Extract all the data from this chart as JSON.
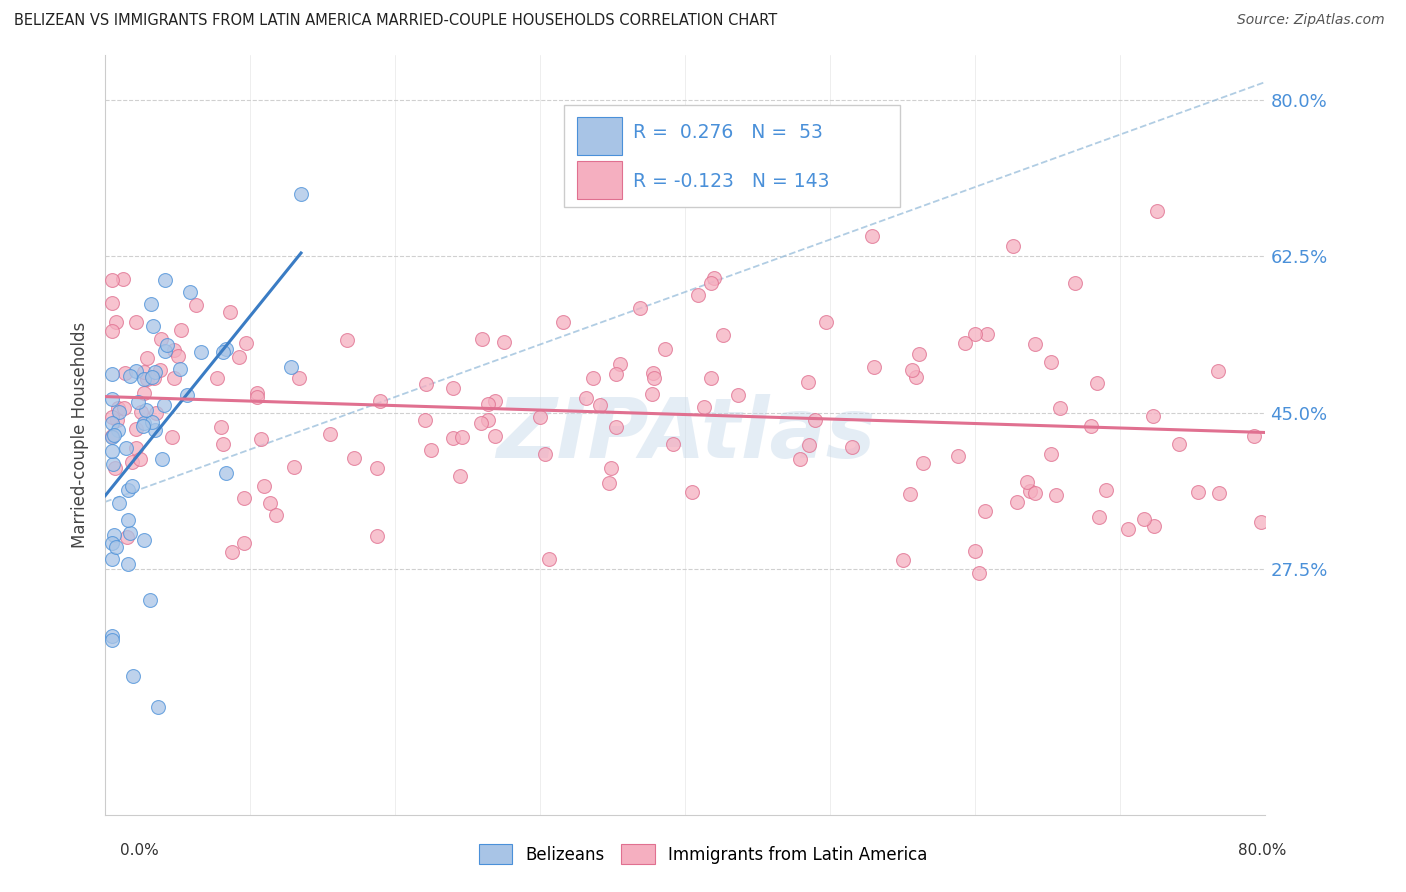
{
  "title": "BELIZEAN VS IMMIGRANTS FROM LATIN AMERICA MARRIED-COUPLE HOUSEHOLDS CORRELATION CHART",
  "source": "Source: ZipAtlas.com",
  "ylabel": "Married-couple Households",
  "xlim": [
    0.0,
    0.8
  ],
  "ylim": [
    0.0,
    0.85
  ],
  "ytick_vals": [
    0.275,
    0.45,
    0.625,
    0.8
  ],
  "ytick_labels": [
    "27.5%",
    "45.0%",
    "62.5%",
    "80.0%"
  ],
  "belizean_color": "#a8c4e6",
  "latin_color": "#f5afc0",
  "belizean_edge": "#4a90d9",
  "latin_edge": "#e07090",
  "trend_blue": "#3a7cc4",
  "trend_pink": "#e07090",
  "diag_color": "#90b8d8",
  "grid_color": "#d0d0d0",
  "watermark_color": "#c5d8ea",
  "marker_size": 100,
  "marker_alpha": 0.75,
  "bel_R": 0.276,
  "bel_N": 53,
  "lat_R": -0.123,
  "lat_N": 143
}
